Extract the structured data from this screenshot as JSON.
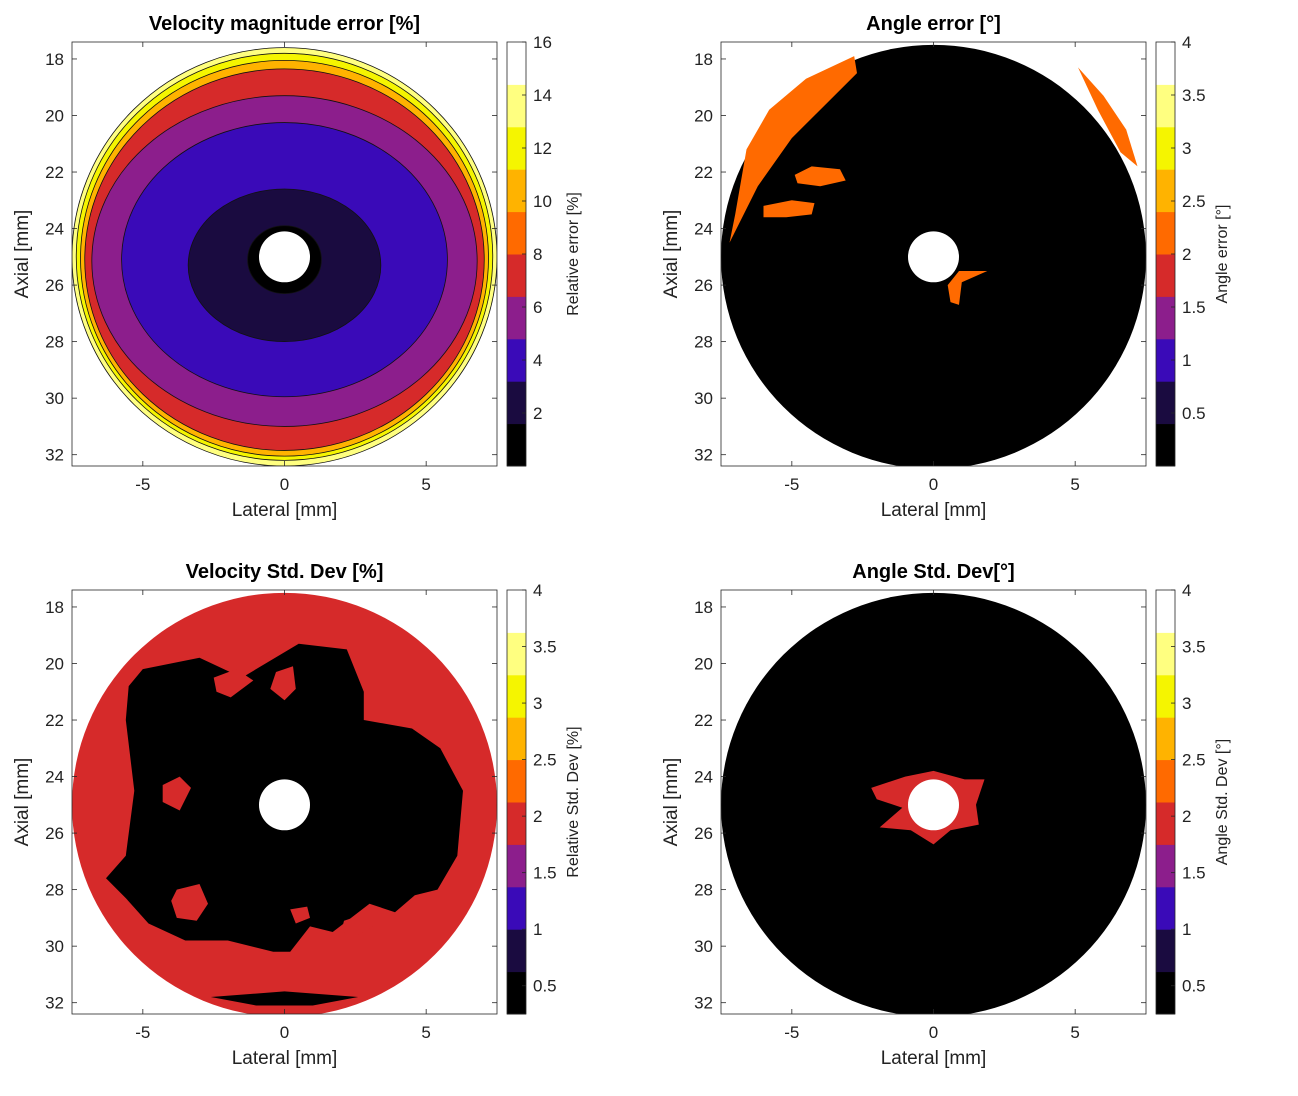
{
  "colors": {
    "black": "#000000",
    "dark_purple": "#1a0b40",
    "blue_violet": "#3a0ab8",
    "purple": "#8c1e8c",
    "red": "#d62a2a",
    "orange": "#ff6a00",
    "amber": "#ffb300",
    "yellow": "#f5f500",
    "light_yellow": "#ffff80",
    "white": "#ffffff"
  },
  "chart_data": [
    {
      "type": "heatmap",
      "title": "Velocity magnitude error [%]",
      "xlabel": "Lateral [mm]",
      "ylabel": "Axial [mm]",
      "colorbar_label": "Relative error [%]",
      "xlim": [
        -7.5,
        7.5
      ],
      "ylim": [
        32.4,
        17.4
      ],
      "xticks": [
        -5,
        0,
        5
      ],
      "xtick_labels": [
        "-5",
        "0",
        "5"
      ],
      "yticks": [
        18,
        20,
        22,
        24,
        26,
        28,
        30,
        32
      ],
      "ytick_labels": [
        "18",
        "20",
        "22",
        "24",
        "26",
        "28",
        "30",
        "32"
      ],
      "clim": [
        0,
        16
      ],
      "cticks": [
        2,
        4,
        6,
        8,
        10,
        12,
        14,
        16
      ],
      "ctick_labels": [
        "2",
        "4",
        "6",
        "8",
        "10",
        "12",
        "14",
        "16"
      ],
      "contour_lines": true,
      "region": {
        "shape": "disk",
        "center": [
          0,
          25
        ],
        "radius_mm": 7.5,
        "hole_radius_mm": 0.9
      },
      "contours": [
        {
          "level": "14-16",
          "color": "#ffff80",
          "rx": 7.5,
          "ry": 7.4,
          "cy": 25.0
        },
        {
          "level": "12-14",
          "color": "#f5f500",
          "rx": 7.35,
          "ry": 7.2,
          "cy": 25.0
        },
        {
          "level": "10-12",
          "color": "#ffb300",
          "rx": 7.2,
          "ry": 7.0,
          "cy": 25.05
        },
        {
          "level": "8-10",
          "color": "#d62a2a",
          "rx": 7.05,
          "ry": 6.75,
          "cy": 25.1
        },
        {
          "level": "6-8",
          "color": "#8c1e8c",
          "rx": 6.8,
          "ry": 5.85,
          "cy": 25.15
        },
        {
          "level": "4-6",
          "color": "#3a0ab8",
          "rx": 5.75,
          "ry": 4.85,
          "cy": 25.1
        },
        {
          "level": "2-4",
          "color": "#1a0b40",
          "rx": 3.4,
          "ry": 2.7,
          "cy": 25.3
        },
        {
          "level": "0-2",
          "color": "#000000",
          "rx": 1.3,
          "ry": 1.2,
          "cy": 25.1
        }
      ]
    },
    {
      "type": "heatmap",
      "title": "Angle error [°]",
      "xlabel": "Lateral [mm]",
      "ylabel": "Axial [mm]",
      "colorbar_label": "Angle error [°]",
      "xlim": [
        -7.5,
        7.5
      ],
      "ylim": [
        32.4,
        17.4
      ],
      "xticks": [
        -5,
        0,
        5
      ],
      "xtick_labels": [
        "-5",
        "0",
        "5"
      ],
      "yticks": [
        18,
        20,
        22,
        24,
        26,
        28,
        30,
        32
      ],
      "ytick_labels": [
        "18",
        "20",
        "22",
        "24",
        "26",
        "28",
        "30",
        "32"
      ],
      "clim": [
        0,
        4
      ],
      "cticks": [
        0.5,
        1,
        1.5,
        2,
        2.5,
        3,
        3.5,
        4
      ],
      "ctick_labels": [
        "0.5",
        "1",
        "1.5",
        "2",
        "2.5",
        "3",
        "3.5",
        "4"
      ],
      "contour_lines": false,
      "region": {
        "shape": "disk",
        "center": [
          0,
          25
        ],
        "radius_mm": 7.5,
        "hole_radius_mm": 0.9
      },
      "background_color": "#000000",
      "patches": [
        {
          "color": "#ff6a00",
          "points": [
            [
              -6.6,
              21.2
            ],
            [
              -5.8,
              19.8
            ],
            [
              -4.5,
              18.7
            ],
            [
              -2.8,
              17.9
            ],
            [
              -2.7,
              18.5
            ],
            [
              -3.8,
              19.6
            ],
            [
              -5.0,
              20.8
            ],
            [
              -6.2,
              22.5
            ],
            [
              -7.2,
              24.5
            ],
            [
              -7.0,
              23.5
            ]
          ]
        },
        {
          "color": "#ff6a00",
          "points": [
            [
              -4.9,
              22.1
            ],
            [
              -4.3,
              21.8
            ],
            [
              -3.3,
              21.9
            ],
            [
              -3.1,
              22.3
            ],
            [
              -4.0,
              22.5
            ],
            [
              -4.8,
              22.4
            ]
          ]
        },
        {
          "color": "#ff6a00",
          "points": [
            [
              -6.0,
              23.2
            ],
            [
              -5.0,
              23.0
            ],
            [
              -4.2,
              23.1
            ],
            [
              -4.3,
              23.5
            ],
            [
              -5.2,
              23.6
            ],
            [
              -6.0,
              23.6
            ]
          ]
        },
        {
          "color": "#ff6a00",
          "points": [
            [
              0.9,
              25.5
            ],
            [
              1.9,
              25.5
            ],
            [
              1.0,
              25.9
            ],
            [
              0.9,
              26.7
            ],
            [
              0.6,
              26.6
            ],
            [
              0.5,
              26.0
            ]
          ]
        },
        {
          "color": "#ff6a00",
          "points": [
            [
              5.1,
              18.3
            ],
            [
              6.0,
              19.3
            ],
            [
              6.8,
              20.5
            ],
            [
              7.2,
              21.8
            ],
            [
              6.6,
              21.3
            ],
            [
              5.8,
              19.8
            ]
          ]
        }
      ]
    },
    {
      "type": "heatmap",
      "title": "Velocity Std. Dev [%]",
      "xlabel": "Lateral [mm]",
      "ylabel": "Axial [mm]",
      "colorbar_label": "Relative Std. Dev [%]",
      "xlim": [
        -7.5,
        7.5
      ],
      "ylim": [
        32.4,
        17.4
      ],
      "xticks": [
        -5,
        0,
        5
      ],
      "xtick_labels": [
        "-5",
        "0",
        "5"
      ],
      "yticks": [
        18,
        20,
        22,
        24,
        26,
        28,
        30,
        32
      ],
      "ytick_labels": [
        "18",
        "20",
        "22",
        "24",
        "26",
        "28",
        "30",
        "32"
      ],
      "clim": [
        0.25,
        4
      ],
      "cticks": [
        0.5,
        1,
        1.5,
        2,
        2.5,
        3,
        3.5,
        4
      ],
      "ctick_labels": [
        "0.5",
        "1",
        "1.5",
        "2",
        "2.5",
        "3",
        "3.5",
        "4"
      ],
      "contour_lines": false,
      "region": {
        "shape": "disk",
        "center": [
          0,
          25
        ],
        "radius_mm": 7.5,
        "hole_radius_mm": 0.9
      },
      "background_color": "#d62a2a",
      "patches": [
        {
          "color": "#000000",
          "points": [
            [
              -5.0,
              20.2
            ],
            [
              -3.0,
              19.8
            ],
            [
              -1.5,
              20.5
            ],
            [
              0.5,
              19.3
            ],
            [
              2.2,
              19.5
            ],
            [
              2.8,
              21.0
            ],
            [
              2.8,
              22.0
            ],
            [
              4.5,
              22.3
            ],
            [
              5.5,
              23.0
            ],
            [
              6.3,
              24.5
            ],
            [
              6.1,
              26.8
            ],
            [
              5.4,
              28.0
            ],
            [
              4.6,
              28.2
            ],
            [
              3.9,
              28.8
            ],
            [
              3.0,
              28.5
            ],
            [
              1.7,
              29.5
            ],
            [
              0.9,
              29.3
            ],
            [
              0.2,
              30.2
            ],
            [
              -0.4,
              30.2
            ],
            [
              -2.0,
              29.8
            ],
            [
              -3.5,
              29.8
            ],
            [
              -4.8,
              29.2
            ],
            [
              -5.6,
              28.3
            ],
            [
              -6.3,
              27.6
            ],
            [
              -5.6,
              26.8
            ],
            [
              -5.3,
              24.5
            ],
            [
              -5.6,
              22.0
            ],
            [
              -5.5,
              20.8
            ]
          ]
        },
        {
          "color": "#d62a2a",
          "points": [
            [
              -3.8,
              28.0
            ],
            [
              -3.0,
              27.8
            ],
            [
              -2.7,
              28.5
            ],
            [
              -3.1,
              29.1
            ],
            [
              -3.8,
              29.0
            ],
            [
              -4.0,
              28.4
            ]
          ]
        },
        {
          "color": "#d62a2a",
          "points": [
            [
              -4.3,
              24.3
            ],
            [
              -3.7,
              24.0
            ],
            [
              -3.3,
              24.4
            ],
            [
              -3.7,
              25.2
            ],
            [
              -4.3,
              24.9
            ]
          ]
        },
        {
          "color": "#d62a2a",
          "points": [
            [
              -0.3,
              20.3
            ],
            [
              0.3,
              20.1
            ],
            [
              0.4,
              20.9
            ],
            [
              0.0,
              21.3
            ],
            [
              -0.5,
              20.9
            ]
          ]
        },
        {
          "color": "#d62a2a",
          "points": [
            [
              -2.5,
              20.5
            ],
            [
              -1.7,
              20.2
            ],
            [
              -1.1,
              20.6
            ],
            [
              -1.9,
              21.2
            ],
            [
              -2.4,
              21.0
            ]
          ]
        },
        {
          "color": "#d62a2a",
          "points": [
            [
              2.1,
              29.1
            ],
            [
              3.0,
              28.8
            ],
            [
              3.3,
              29.2
            ],
            [
              2.6,
              29.6
            ],
            [
              2.0,
              29.5
            ]
          ]
        },
        {
          "color": "#d62a2a",
          "points": [
            [
              0.2,
              28.7
            ],
            [
              0.8,
              28.6
            ],
            [
              0.9,
              29.0
            ],
            [
              0.4,
              29.2
            ]
          ]
        },
        {
          "color": "#000000",
          "points": [
            [
              -2.6,
              31.8
            ],
            [
              0.0,
              31.6
            ],
            [
              2.6,
              31.8
            ],
            [
              1.0,
              32.1
            ],
            [
              -1.0,
              32.1
            ]
          ]
        }
      ]
    },
    {
      "type": "heatmap",
      "title": "Angle Std. Dev[°]",
      "xlabel": "Lateral [mm]",
      "ylabel": "Axial [mm]",
      "colorbar_label": "Angle Std. Dev [°]",
      "xlim": [
        -7.5,
        7.5
      ],
      "ylim": [
        32.4,
        17.4
      ],
      "xticks": [
        -5,
        0,
        5
      ],
      "xtick_labels": [
        "-5",
        "0",
        "5"
      ],
      "yticks": [
        18,
        20,
        22,
        24,
        26,
        28,
        30,
        32
      ],
      "ytick_labels": [
        "18",
        "20",
        "22",
        "24",
        "26",
        "28",
        "30",
        "32"
      ],
      "clim": [
        0.25,
        4
      ],
      "cticks": [
        0.5,
        1,
        1.5,
        2,
        2.5,
        3,
        3.5,
        4
      ],
      "ctick_labels": [
        "0.5",
        "1",
        "1.5",
        "2",
        "2.5",
        "3",
        "3.5",
        "4"
      ],
      "contour_lines": false,
      "region": {
        "shape": "disk",
        "center": [
          0,
          25
        ],
        "radius_mm": 7.5,
        "hole_radius_mm": 0.9
      },
      "background_color": "#000000",
      "patches": [
        {
          "color": "#d62a2a",
          "points": [
            [
              -2.2,
              24.4
            ],
            [
              -1.0,
              24.0
            ],
            [
              0.0,
              23.8
            ],
            [
              1.1,
              24.1
            ],
            [
              1.8,
              24.1
            ],
            [
              1.5,
              25.0
            ],
            [
              1.6,
              25.7
            ],
            [
              0.6,
              25.9
            ],
            [
              0.0,
              26.4
            ],
            [
              -0.8,
              25.9
            ],
            [
              -1.9,
              25.8
            ],
            [
              -1.1,
              25.1
            ],
            [
              -2.0,
              24.8
            ]
          ]
        }
      ]
    }
  ]
}
